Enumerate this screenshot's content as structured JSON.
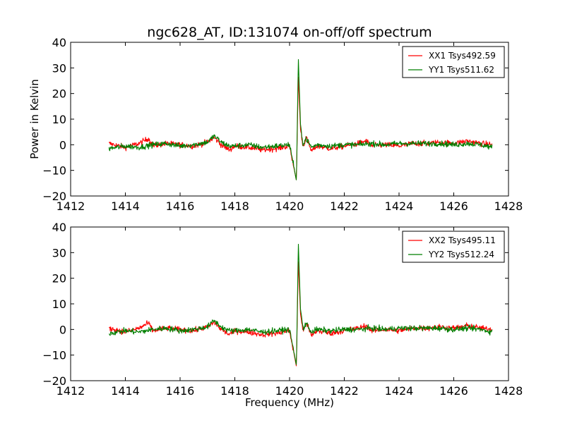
{
  "chart_data": {
    "type": "line",
    "title": "ngc628_AT, ID:131074 on-off/off spectrum",
    "xlabel": "Frequency (MHz)",
    "ylabel": "Power in Kelvin",
    "xlim": [
      1412,
      1428
    ],
    "ylim": [
      -20,
      40
    ],
    "xticks": [
      1412,
      1414,
      1416,
      1418,
      1420,
      1422,
      1424,
      1426,
      1428
    ],
    "yticks": [
      -20,
      -10,
      0,
      10,
      20,
      30,
      40
    ],
    "x_range": [
      1413.4,
      1427.4
    ],
    "legend_position": "top-right",
    "panels": [
      {
        "series": [
          {
            "name": "XX1 Tsys492.59",
            "color": "#ff0000",
            "points": [
              [
                1413.4,
                0.5
              ],
              [
                1414.0,
                -1.0
              ],
              [
                1414.5,
                0.5
              ],
              [
                1414.85,
                2.5
              ],
              [
                1415.0,
                -0.5
              ],
              [
                1415.5,
                0.5
              ],
              [
                1416.0,
                0.0
              ],
              [
                1416.5,
                -0.5
              ],
              [
                1417.0,
                1.0
              ],
              [
                1417.25,
                2.8
              ],
              [
                1417.5,
                0.0
              ],
              [
                1417.8,
                -2.0
              ],
              [
                1418.0,
                -0.5
              ],
              [
                1418.5,
                -1.0
              ],
              [
                1419.0,
                -2.0
              ],
              [
                1419.5,
                -1.5
              ],
              [
                1420.0,
                -0.5
              ],
              [
                1420.25,
                -14.0
              ],
              [
                1420.32,
                27.0
              ],
              [
                1420.4,
                6.0
              ],
              [
                1420.5,
                -1.0
              ],
              [
                1420.6,
                3.0
              ],
              [
                1420.8,
                -2.5
              ],
              [
                1421.0,
                -0.5
              ],
              [
                1421.5,
                -1.5
              ],
              [
                1422.0,
                -0.5
              ],
              [
                1422.5,
                0.5
              ],
              [
                1422.8,
                1.5
              ],
              [
                1423.0,
                -0.5
              ],
              [
                1423.5,
                0.0
              ],
              [
                1424.0,
                -0.5
              ],
              [
                1424.5,
                0.5
              ],
              [
                1425.0,
                0.5
              ],
              [
                1425.5,
                1.0
              ],
              [
                1426.0,
                0.5
              ],
              [
                1426.5,
                1.5
              ],
              [
                1427.0,
                0.5
              ],
              [
                1427.4,
                0.0
              ]
            ]
          },
          {
            "name": "YY1 Tsys511.62",
            "color": "#007f00",
            "points": [
              [
                1413.4,
                -1.5
              ],
              [
                1414.0,
                -0.5
              ],
              [
                1414.5,
                -1.0
              ],
              [
                1415.0,
                0.0
              ],
              [
                1415.5,
                0.5
              ],
              [
                1416.0,
                -0.5
              ],
              [
                1416.5,
                0.0
              ],
              [
                1417.0,
                1.0
              ],
              [
                1417.25,
                3.5
              ],
              [
                1417.5,
                1.0
              ],
              [
                1417.8,
                -0.5
              ],
              [
                1418.0,
                -0.5
              ],
              [
                1418.5,
                0.0
              ],
              [
                1419.0,
                -1.0
              ],
              [
                1419.5,
                -0.5
              ],
              [
                1420.0,
                0.0
              ],
              [
                1420.25,
                -14.0
              ],
              [
                1420.32,
                34.0
              ],
              [
                1420.4,
                8.0
              ],
              [
                1420.5,
                0.0
              ],
              [
                1420.6,
                2.5
              ],
              [
                1420.8,
                -1.0
              ],
              [
                1421.0,
                0.0
              ],
              [
                1421.5,
                -0.5
              ],
              [
                1422.0,
                0.0
              ],
              [
                1422.5,
                0.0
              ],
              [
                1423.0,
                0.5
              ],
              [
                1423.5,
                0.0
              ],
              [
                1424.0,
                0.5
              ],
              [
                1424.5,
                0.5
              ],
              [
                1425.0,
                0.5
              ],
              [
                1425.5,
                0.5
              ],
              [
                1426.0,
                0.0
              ],
              [
                1426.5,
                0.5
              ],
              [
                1427.0,
                0.0
              ],
              [
                1427.4,
                -1.0
              ]
            ]
          }
        ]
      },
      {
        "series": [
          {
            "name": "XX2 Tsys495.11",
            "color": "#ff0000",
            "points": [
              [
                1413.4,
                0.5
              ],
              [
                1414.0,
                -1.0
              ],
              [
                1414.5,
                0.5
              ],
              [
                1414.85,
                2.5
              ],
              [
                1415.0,
                -0.5
              ],
              [
                1415.5,
                0.5
              ],
              [
                1416.0,
                0.0
              ],
              [
                1416.5,
                -0.5
              ],
              [
                1417.0,
                1.0
              ],
              [
                1417.25,
                2.8
              ],
              [
                1417.5,
                0.0
              ],
              [
                1417.8,
                -2.0
              ],
              [
                1418.0,
                -0.5
              ],
              [
                1418.5,
                -1.0
              ],
              [
                1419.0,
                -2.0
              ],
              [
                1419.5,
                -1.5
              ],
              [
                1420.0,
                -0.5
              ],
              [
                1420.25,
                -14.5
              ],
              [
                1420.32,
                27.0
              ],
              [
                1420.4,
                6.0
              ],
              [
                1420.5,
                -1.0
              ],
              [
                1420.6,
                3.0
              ],
              [
                1420.8,
                -2.5
              ],
              [
                1421.0,
                -0.5
              ],
              [
                1421.5,
                -1.5
              ],
              [
                1422.0,
                -0.5
              ],
              [
                1422.5,
                0.5
              ],
              [
                1422.8,
                1.5
              ],
              [
                1423.0,
                -0.5
              ],
              [
                1423.5,
                0.0
              ],
              [
                1424.0,
                -0.5
              ],
              [
                1424.5,
                0.5
              ],
              [
                1425.0,
                0.5
              ],
              [
                1425.5,
                1.0
              ],
              [
                1426.0,
                0.5
              ],
              [
                1426.5,
                1.5
              ],
              [
                1427.0,
                0.5
              ],
              [
                1427.4,
                0.0
              ]
            ]
          },
          {
            "name": "YY2 Tsys512.24",
            "color": "#007f00",
            "points": [
              [
                1413.4,
                -1.5
              ],
              [
                1414.0,
                -0.5
              ],
              [
                1414.5,
                -1.0
              ],
              [
                1415.0,
                0.0
              ],
              [
                1415.5,
                0.5
              ],
              [
                1416.0,
                -0.5
              ],
              [
                1416.5,
                0.0
              ],
              [
                1417.0,
                1.0
              ],
              [
                1417.25,
                3.5
              ],
              [
                1417.5,
                1.0
              ],
              [
                1417.8,
                -0.5
              ],
              [
                1418.0,
                -0.5
              ],
              [
                1418.5,
                0.0
              ],
              [
                1419.0,
                -1.0
              ],
              [
                1419.5,
                -0.5
              ],
              [
                1420.0,
                0.0
              ],
              [
                1420.25,
                -14.0
              ],
              [
                1420.32,
                34.0
              ],
              [
                1420.4,
                8.0
              ],
              [
                1420.5,
                0.0
              ],
              [
                1420.6,
                2.5
              ],
              [
                1420.8,
                -1.0
              ],
              [
                1421.0,
                0.0
              ],
              [
                1421.5,
                -0.5
              ],
              [
                1422.0,
                0.0
              ],
              [
                1422.5,
                0.0
              ],
              [
                1423.0,
                0.5
              ],
              [
                1423.5,
                0.0
              ],
              [
                1424.0,
                0.5
              ],
              [
                1424.5,
                0.5
              ],
              [
                1425.0,
                0.5
              ],
              [
                1425.5,
                0.5
              ],
              [
                1426.0,
                0.0
              ],
              [
                1426.5,
                0.5
              ],
              [
                1427.0,
                0.0
              ],
              [
                1427.4,
                -1.0
              ]
            ]
          }
        ]
      }
    ]
  }
}
